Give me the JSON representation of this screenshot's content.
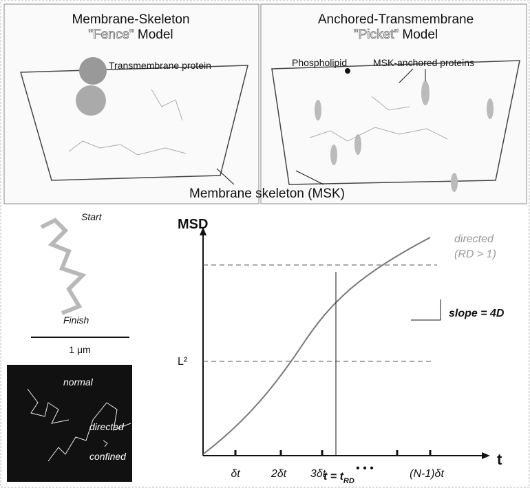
{
  "panels": [
    {
      "title_line1": "Membrane-Skeleton",
      "title_word": "\"Fence\"",
      "title_rest": "Model",
      "labels": [
        "Transmembrane protein"
      ]
    },
    {
      "title_line1": "Anchored-Transmembrane",
      "title_word": "\"Picket\"",
      "title_rest": "Model",
      "labels": [
        "Phospholipid",
        "MSK-anchored proteins"
      ]
    }
  ],
  "shared_label": "Membrane skeleton (MSK)",
  "trajectory": {
    "start": "Start",
    "finish": "Finish",
    "scale": "1 μm"
  },
  "modes": [
    "normal",
    "directed",
    "confined"
  ],
  "plot": {
    "y_label": "MSD",
    "x_label": "t",
    "curve_label": "directed",
    "curve_sublabel": "(RD > 1)",
    "slope": "slope = 4D",
    "level": "L²",
    "ticks": [
      "δt",
      "2δt",
      "3δt",
      "• • •",
      "(N-1)δt"
    ],
    "marker": "t = t",
    "marker_sub": "RD"
  }
}
